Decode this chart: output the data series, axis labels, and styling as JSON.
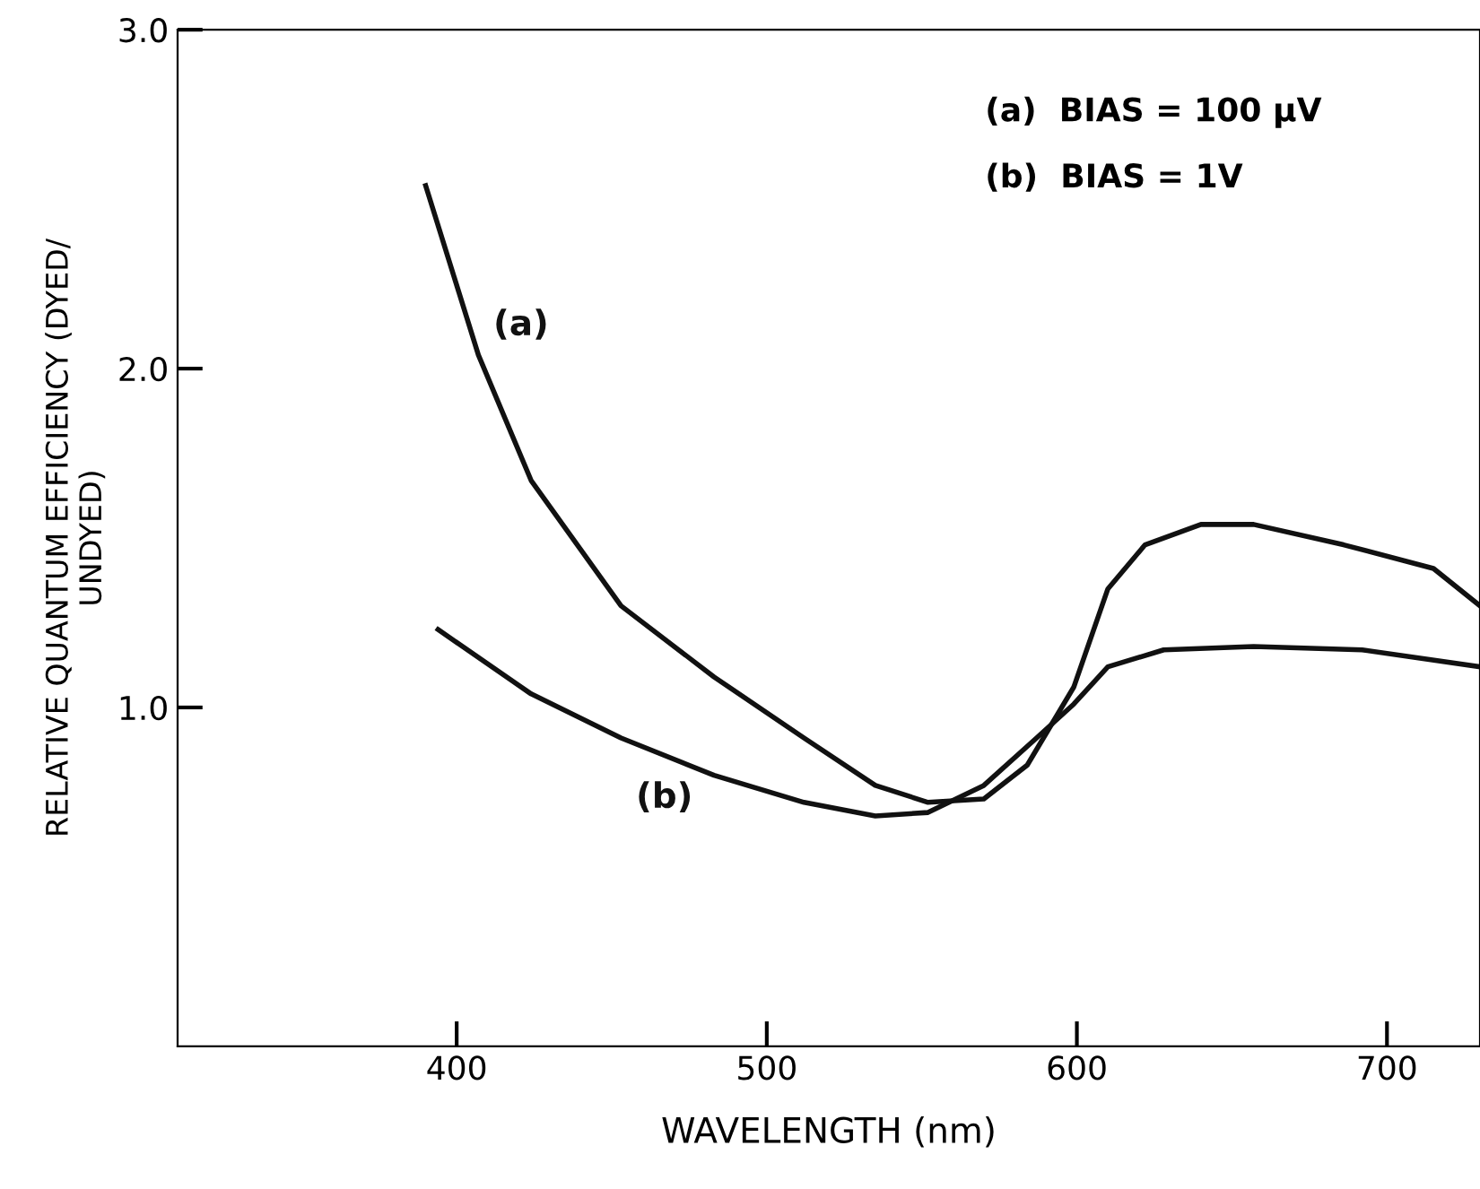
{
  "chart_data": {
    "type": "line",
    "xlabel": "WAVELENGTH (nm)",
    "ylabel": "RELATIVE QUANTUM EFFICIENCY (DYED/\nUNDYED)",
    "xlim": [
      310,
      730
    ],
    "ylim": [
      0,
      3.0
    ],
    "xticks": [
      400,
      500,
      600,
      700
    ],
    "yticks": [
      {
        "value": 1,
        "label": "1.0"
      },
      {
        "value": 2,
        "label": "2.0"
      },
      {
        "value": 3,
        "label": "3.0"
      }
    ],
    "grid": false,
    "marker": "none",
    "line_style": "solid",
    "series": [
      {
        "name": "(a)",
        "color": "#111111",
        "x": [
          390,
          407,
          424,
          453,
          483,
          512,
          535,
          552,
          570,
          584,
          599,
          610,
          622,
          640,
          657,
          686,
          715,
          730
        ],
        "values": [
          2.54,
          2.04,
          1.67,
          1.3,
          1.09,
          0.91,
          0.77,
          0.72,
          0.73,
          0.83,
          1.06,
          1.35,
          1.48,
          1.54,
          1.54,
          1.48,
          1.41,
          1.3
        ]
      },
      {
        "name": "(b)",
        "color": "#111111",
        "x": [
          394,
          424,
          453,
          483,
          512,
          535,
          552,
          570,
          587,
          599,
          610,
          628,
          657,
          692,
          730
        ],
        "values": [
          1.23,
          1.04,
          0.91,
          0.8,
          0.72,
          0.68,
          0.69,
          0.77,
          0.91,
          1.01,
          1.12,
          1.17,
          1.18,
          1.17,
          1.12
        ]
      }
    ],
    "annotations": [
      "(a)  BIAS = 100 μV",
      "(b)  BIAS = 1V"
    ]
  }
}
